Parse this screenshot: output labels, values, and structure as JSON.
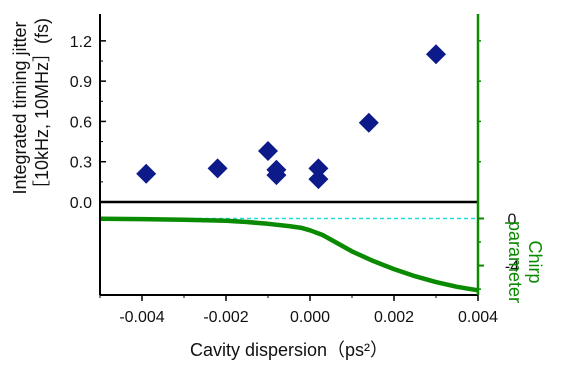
{
  "chart_data": [
    {
      "type": "scatter",
      "panel": "top",
      "marker": "diamond",
      "marker_color": "#0d1a8a",
      "ylabel_line1": "Integrated timing jitter",
      "ylabel_line2": "［10kHz, 10MHz］(fs)",
      "ylim": [
        0.0,
        1.4
      ],
      "yticks": [
        "0.0",
        "0.3",
        "0.6",
        "0.9",
        "1.2"
      ],
      "ytick_values": [
        0.0,
        0.3,
        0.6,
        0.9,
        1.2
      ],
      "points": [
        {
          "x": -0.0039,
          "y": 0.21
        },
        {
          "x": -0.0022,
          "y": 0.25
        },
        {
          "x": -0.001,
          "y": 0.38
        },
        {
          "x": -0.0008,
          "y": 0.24
        },
        {
          "x": -0.0008,
          "y": 0.2
        },
        {
          "x": 0.0002,
          "y": 0.25
        },
        {
          "x": 0.0002,
          "y": 0.17
        },
        {
          "x": 0.0014,
          "y": 0.59
        },
        {
          "x": 0.003,
          "y": 1.1
        }
      ]
    },
    {
      "type": "line",
      "panel": "bottom",
      "line_color": "#0a8a00",
      "reference_line_color": "#22dddd",
      "reference_value": 0,
      "ylabel_line1": "Chirp",
      "ylabel_line2": "parameter",
      "ylim": [
        -6.5,
        1.4
      ],
      "yticks": [
        "0",
        "-4"
      ],
      "ytick_values": [
        0,
        -4
      ],
      "series": [
        {
          "x": [
            -0.005,
            -0.004,
            -0.003,
            -0.002,
            -0.0015,
            -0.001,
            -0.0005,
            -0.0002,
            0.0,
            0.0003,
            0.0006,
            0.001,
            0.0015,
            0.002,
            0.0025,
            0.003,
            0.0035,
            0.004
          ],
          "values": [
            -0.02,
            -0.05,
            -0.1,
            -0.2,
            -0.3,
            -0.45,
            -0.65,
            -0.8,
            -1.0,
            -1.4,
            -2.0,
            -2.8,
            -3.6,
            -4.3,
            -4.9,
            -5.4,
            -5.8,
            -6.1
          ]
        }
      ]
    }
  ],
  "shared_x": {
    "xlabel": "Cavity dispersion（ps²）",
    "xlim": [
      -0.005,
      0.004
    ],
    "xticks": [
      "-0.004",
      "-0.002",
      "0.000",
      "0.002",
      "0.004"
    ],
    "xtick_values": [
      -0.004,
      -0.002,
      0.0,
      0.002,
      0.004
    ]
  },
  "colors": {
    "right_axis": "#0a8a00",
    "frame": "#000000"
  }
}
